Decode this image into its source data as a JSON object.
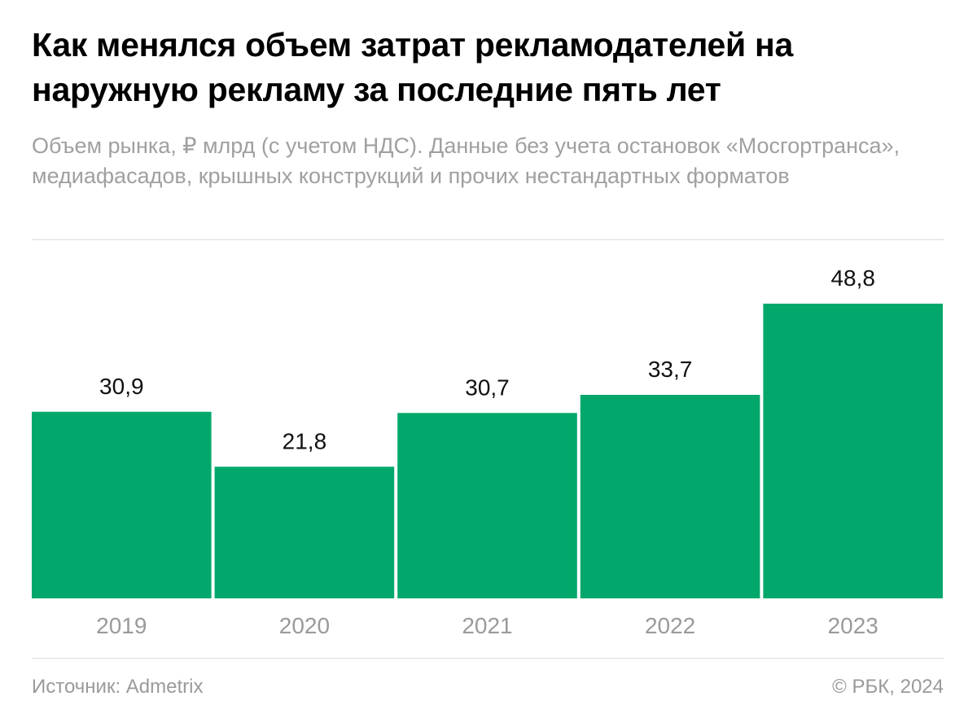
{
  "header": {
    "title": "Как менялся объем затрат рекламодателей на наружную рекламу за последние пять лет",
    "subtitle": "Объем рынка, ₽ млрд (с учетом НДС). Данные без учета остановок «Мосгортранса», медиафасадов, крышных конструкций и прочих нестандартных форматов"
  },
  "chart_data": {
    "type": "bar",
    "categories": [
      "2019",
      "2020",
      "2021",
      "2022",
      "2023"
    ],
    "values": [
      30.9,
      21.8,
      30.7,
      33.7,
      48.8
    ],
    "value_labels": [
      "30,9",
      "21,8",
      "30,7",
      "33,7",
      "48,8"
    ],
    "unit": "₽ млрд",
    "ylim": [
      0,
      48.8
    ],
    "grid": false,
    "bar_color": "#02a86b"
  },
  "footer": {
    "source": "Источник: Admetrix",
    "copyright": "© РБК, 2024"
  }
}
